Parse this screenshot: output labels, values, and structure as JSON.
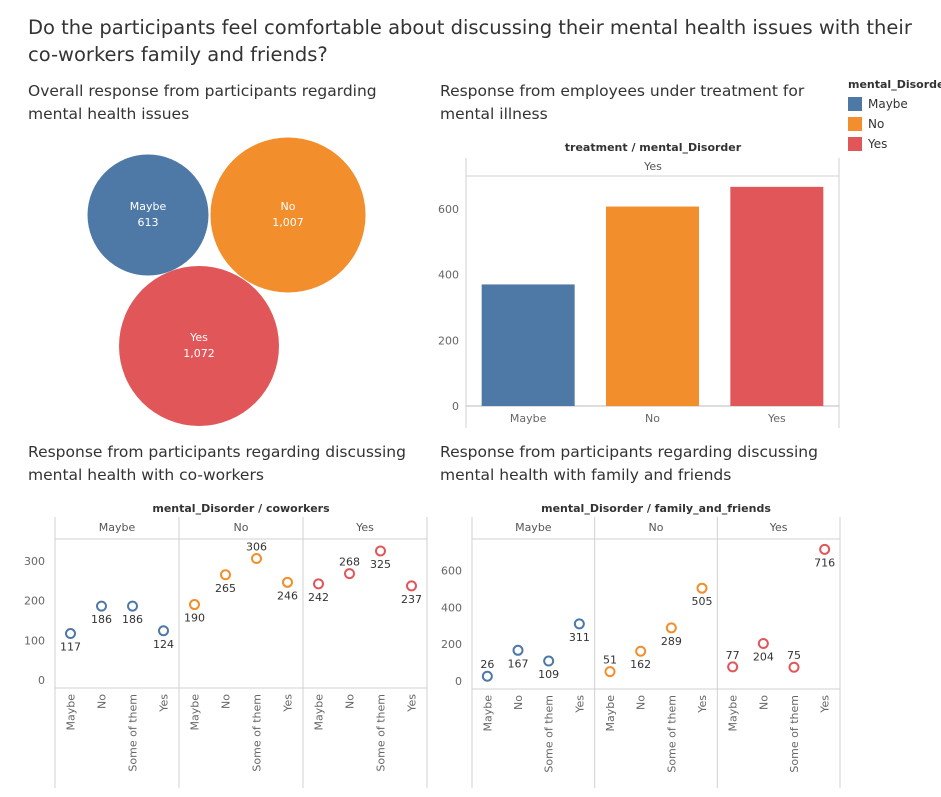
{
  "title": "Do the participants feel comfortable about discussing their mental health issues with their co-workers family and friends?",
  "colors": {
    "Maybe": "#4e79a7",
    "No": "#f28e2b",
    "Yes": "#e15759"
  },
  "legend": {
    "title": "mental_Disorder",
    "items": [
      "Maybe",
      "No",
      "Yes"
    ]
  },
  "chart_data": [
    {
      "type": "bubble",
      "title": "Overall response from participants regarding mental health issues",
      "categories": [
        "Maybe",
        "No",
        "Yes"
      ],
      "values": [
        613,
        1007,
        1072
      ],
      "labels": [
        "613",
        "1,007",
        "1,072"
      ]
    },
    {
      "type": "bar",
      "title": "Response from employees under treatment for mental illness",
      "header": "treatment / mental_Disorder",
      "panel": "Yes",
      "categories": [
        "Maybe",
        "No",
        "Yes"
      ],
      "values": [
        370,
        607,
        667
      ],
      "ylim": [
        0,
        700
      ],
      "yticks": [
        0,
        200,
        400,
        600
      ],
      "grid": false
    },
    {
      "type": "scatter",
      "title": "Response from participants regarding discussing mental health with co-workers",
      "header": "mental_Disorder / coworkers",
      "panels": [
        "Maybe",
        "No",
        "Yes"
      ],
      "categories": [
        "Maybe",
        "No",
        "Some of them",
        "Yes"
      ],
      "series": [
        {
          "name": "Maybe",
          "values": [
            117,
            186,
            186,
            124
          ]
        },
        {
          "name": "No",
          "values": [
            190,
            265,
            306,
            246
          ]
        },
        {
          "name": "Yes",
          "values": [
            242,
            268,
            325,
            237
          ]
        }
      ],
      "ylim": [
        0,
        340
      ],
      "yticks": [
        0,
        100,
        200,
        300
      ]
    },
    {
      "type": "scatter",
      "title": "Response from participants regarding discussing mental health with family and friends",
      "header": "mental_Disorder / family_and_friends",
      "panels": [
        "Maybe",
        "No",
        "Yes"
      ],
      "categories": [
        "Maybe",
        "No",
        "Some of them",
        "Yes"
      ],
      "series": [
        {
          "name": "Maybe",
          "values": [
            26,
            167,
            109,
            311
          ]
        },
        {
          "name": "No",
          "values": [
            51,
            162,
            289,
            505
          ]
        },
        {
          "name": "Yes",
          "values": [
            77,
            204,
            75,
            716
          ]
        }
      ],
      "ylim": [
        0,
        740
      ],
      "yticks": [
        0,
        200,
        400,
        600
      ]
    }
  ]
}
